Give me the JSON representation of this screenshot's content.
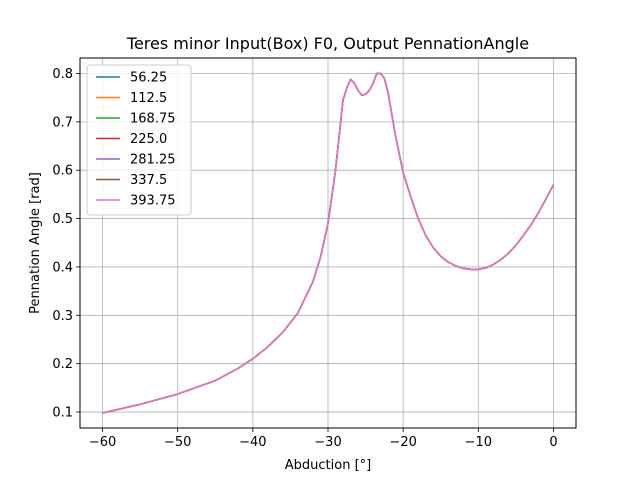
{
  "chart_data": {
    "type": "line",
    "title": "Teres minor Input(Box) F0, Output PennationAngle",
    "xlabel": "Abduction [°]",
    "ylabel": "Pennation Angle [rad]",
    "xlim": [
      -63,
      3
    ],
    "ylim": [
      0.067,
      0.832
    ],
    "xticks": [
      -60,
      -50,
      -40,
      -30,
      -20,
      -10,
      0
    ],
    "yticks": [
      0.1,
      0.2,
      0.3,
      0.4,
      0.5,
      0.6,
      0.7,
      0.8
    ],
    "xtick_labels": [
      "−60",
      "−50",
      "−40",
      "−30",
      "−20",
      "−10",
      "0"
    ],
    "ytick_labels": [
      "0.1",
      "0.2",
      "0.3",
      "0.4",
      "0.5",
      "0.6",
      "0.7",
      "0.8"
    ],
    "grid": true,
    "legend_position": "top-left",
    "x": [
      -60,
      -55,
      -50,
      -45,
      -42,
      -40,
      -38,
      -36,
      -34,
      -32,
      -31,
      -30,
      -29,
      -28,
      -27.5,
      -27,
      -26.5,
      -26,
      -25.5,
      -25,
      -24.5,
      -24,
      -23.5,
      -23,
      -22.5,
      -22,
      -21,
      -20,
      -19,
      -18,
      -17,
      -16,
      -15,
      -14,
      -13,
      -12,
      -11,
      -10,
      -9,
      -8,
      -7,
      -6,
      -5,
      -4,
      -3,
      -2,
      -1,
      0
    ],
    "series": [
      {
        "name": "56.25",
        "color": "#1f77b4"
      },
      {
        "name": "112.5",
        "color": "#ff7f0e"
      },
      {
        "name": "168.75",
        "color": "#2ca02c"
      },
      {
        "name": "225.0",
        "color": "#d62728"
      },
      {
        "name": "281.25",
        "color": "#9467bd"
      },
      {
        "name": "337.5",
        "color": "#8c564b"
      },
      {
        "name": "393.75",
        "color": "#e377c2"
      }
    ],
    "shared_values": [
      0.098,
      0.116,
      0.137,
      0.165,
      0.19,
      0.21,
      0.235,
      0.265,
      0.305,
      0.37,
      0.42,
      0.49,
      0.6,
      0.745,
      0.77,
      0.788,
      0.78,
      0.765,
      0.755,
      0.757,
      0.765,
      0.78,
      0.8,
      0.8,
      0.79,
      0.76,
      0.67,
      0.595,
      0.545,
      0.5,
      0.465,
      0.44,
      0.422,
      0.41,
      0.402,
      0.397,
      0.395,
      0.395,
      0.398,
      0.405,
      0.415,
      0.428,
      0.445,
      0.465,
      0.487,
      0.512,
      0.54,
      0.57
    ]
  }
}
